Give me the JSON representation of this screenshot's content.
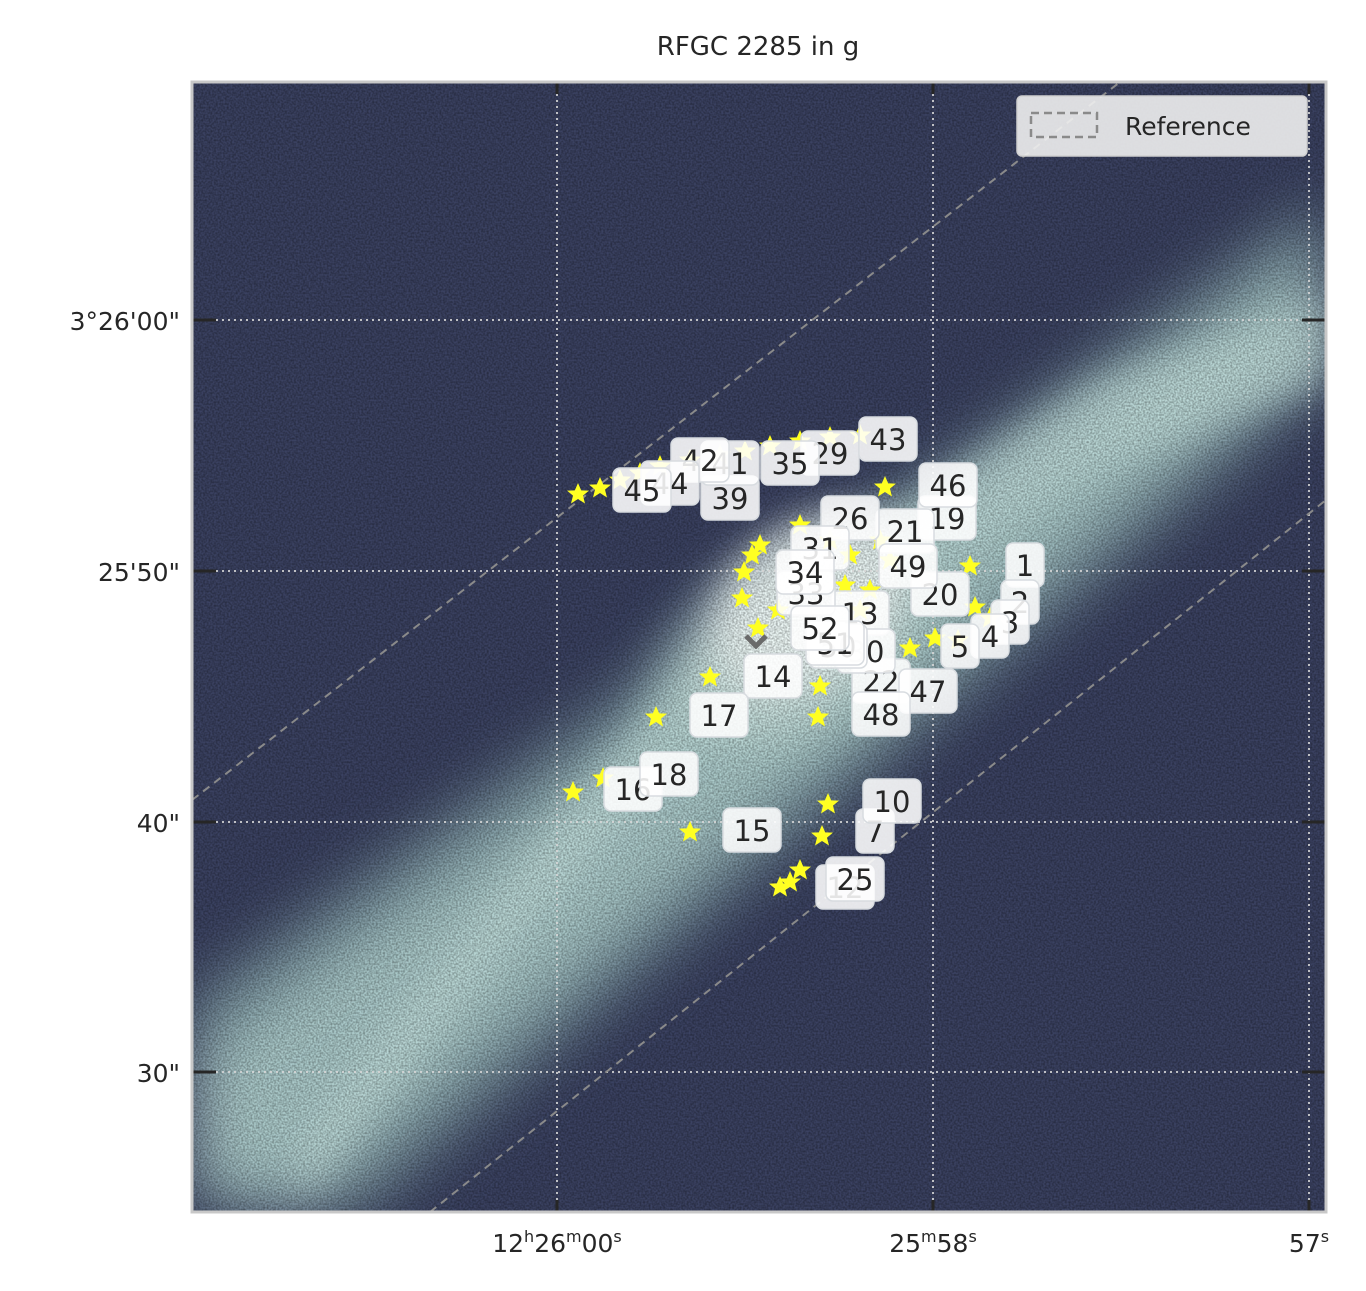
{
  "title": "RFGC 2285 in g",
  "legend": {
    "label": "Reference"
  },
  "axes": {
    "x_ticks": [
      {
        "h": "12",
        "hs": "h",
        "m": "26",
        "ms": "m",
        "s": "00",
        "ss": "s"
      },
      {
        "m": "25",
        "ms": "m",
        "s": "58",
        "ss": "s"
      },
      {
        "s": "57",
        "ss": "s"
      }
    ],
    "y_ticks": [
      "3°26'00\"",
      "25'50\"",
      "40\"",
      "30\""
    ]
  },
  "colors": {
    "star": "#ffff22",
    "bg_dark": "#3b4262",
    "bg_light": "#c2e0dd",
    "reference": "#8a8a8a"
  },
  "labels": [
    {
      "id": "1",
      "text": "1"
    },
    {
      "id": "2",
      "text": "2"
    },
    {
      "id": "3",
      "text": "3"
    },
    {
      "id": "4",
      "text": "4"
    },
    {
      "id": "5",
      "text": "5"
    },
    {
      "id": "7",
      "text": "7"
    },
    {
      "id": "10",
      "text": "10"
    },
    {
      "id": "12",
      "text": "12"
    },
    {
      "id": "13",
      "text": "13"
    },
    {
      "id": "14",
      "text": "14"
    },
    {
      "id": "15",
      "text": "15"
    },
    {
      "id": "16",
      "text": "16"
    },
    {
      "id": "17",
      "text": "17"
    },
    {
      "id": "18",
      "text": "18"
    },
    {
      "id": "19",
      "text": "19"
    },
    {
      "id": "20",
      "text": "20"
    },
    {
      "id": "21",
      "text": "21"
    },
    {
      "id": "22",
      "text": "22"
    },
    {
      "id": "25",
      "text": "25"
    },
    {
      "id": "26",
      "text": "26"
    },
    {
      "id": "29",
      "text": "29"
    },
    {
      "id": "30",
      "text": "30"
    },
    {
      "id": "31",
      "text": "31"
    },
    {
      "id": "33",
      "text": "33"
    },
    {
      "id": "34",
      "text": "34"
    },
    {
      "id": "35",
      "text": "35"
    },
    {
      "id": "39",
      "text": "39"
    },
    {
      "id": "41",
      "text": "41"
    },
    {
      "id": "42",
      "text": "42"
    },
    {
      "id": "43",
      "text": "43"
    },
    {
      "id": "44",
      "text": "44"
    },
    {
      "id": "45",
      "text": "45"
    },
    {
      "id": "46",
      "text": "46"
    },
    {
      "id": "47",
      "text": "47"
    },
    {
      "id": "48",
      "text": "48"
    },
    {
      "id": "49",
      "text": "49"
    },
    {
      "id": "50",
      "text": "50"
    },
    {
      "id": "51",
      "text": "51"
    },
    {
      "id": "52",
      "text": "52"
    }
  ]
}
